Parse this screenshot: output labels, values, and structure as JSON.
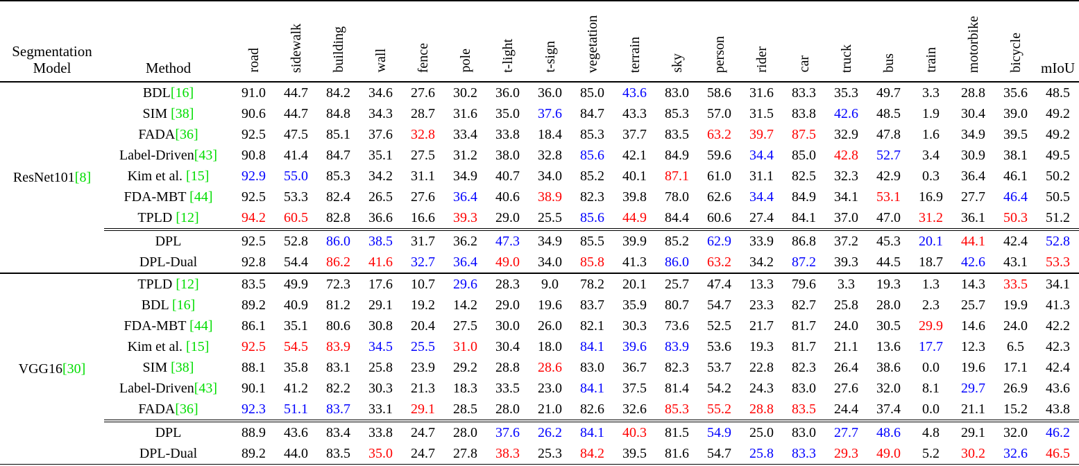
{
  "colors": {
    "text": "#000000",
    "best": "#ff0000",
    "second_best": "#0000ff",
    "citation": "#00dd00"
  },
  "table": {
    "header": {
      "model_col_lines": [
        "Segmentation",
        "Model"
      ],
      "method_col": "Method",
      "class_cols": [
        "road",
        "sidewalk",
        "building",
        "wall",
        "fence",
        "pole",
        "t-light",
        "t-sign",
        "vegetation",
        "terrain",
        "sky",
        "person",
        "rider",
        "car",
        "truck",
        "bus",
        "train",
        "motorbike",
        "bicycle"
      ],
      "miou_col": "mIoU"
    },
    "mark_codes": {
      "k": "text",
      "r": "best",
      "b": "second_best"
    },
    "groups": [
      {
        "model": "ResNet101",
        "model_cite": "[8]",
        "rows": [
          {
            "method": "BDL",
            "cite": "[16]",
            "ours": false,
            "values": [
              "91.0",
              "44.7",
              "84.2",
              "34.6",
              "27.6",
              "30.2",
              "36.0",
              "36.0",
              "85.0",
              "43.6",
              "83.0",
              "58.6",
              "31.6",
              "83.3",
              "35.3",
              "49.7",
              "3.3",
              "28.8",
              "35.6",
              "48.5"
            ],
            "marks": "kkkkkkkkkbkkkkkkkkkk"
          },
          {
            "method": "SIM ",
            "cite": "[38]",
            "ours": false,
            "values": [
              "90.6",
              "44.7",
              "84.8",
              "34.3",
              "28.7",
              "31.6",
              "35.0",
              "37.6",
              "84.7",
              "43.3",
              "85.3",
              "57.0",
              "31.5",
              "83.8",
              "42.6",
              "48.5",
              "1.9",
              "30.4",
              "39.0",
              "49.2"
            ],
            "marks": "kkkkkkkbkkkkkkbkkkkk"
          },
          {
            "method": "FADA",
            "cite": "[36]",
            "ours": false,
            "values": [
              "92.5",
              "47.5",
              "85.1",
              "37.6",
              "32.8",
              "33.4",
              "33.8",
              "18.4",
              "85.3",
              "37.7",
              "83.5",
              "63.2",
              "39.7",
              "87.5",
              "32.9",
              "47.8",
              "1.6",
              "34.9",
              "39.5",
              "49.2"
            ],
            "marks": "kkkkrkkkkkkrrrkkkkkk"
          },
          {
            "method": "Label-Driven",
            "cite": "[43]",
            "ours": false,
            "values": [
              "90.8",
              "41.4",
              "84.7",
              "35.1",
              "27.5",
              "31.2",
              "38.0",
              "32.8",
              "85.6",
              "42.1",
              "84.9",
              "59.6",
              "34.4",
              "85.0",
              "42.8",
              "52.7",
              "3.4",
              "30.9",
              "38.1",
              "49.5"
            ],
            "marks": "kkkkkkkkbkkkbkrbkkkk"
          },
          {
            "method": "Kim et al. ",
            "cite": "[15]",
            "ours": false,
            "values": [
              "92.9",
              "55.0",
              "85.3",
              "34.2",
              "31.1",
              "34.9",
              "40.7",
              "34.0",
              "85.2",
              "40.1",
              "87.1",
              "61.0",
              "31.1",
              "82.5",
              "32.3",
              "42.9",
              "0.3",
              "36.4",
              "46.1",
              "50.2"
            ],
            "marks": "bbkkkkkkkkrkkkkkkkkk"
          },
          {
            "method": "FDA-MBT ",
            "cite": "[44]",
            "ours": false,
            "values": [
              "92.5",
              "53.3",
              "82.4",
              "26.5",
              "27.6",
              "36.4",
              "40.6",
              "38.9",
              "82.3",
              "39.8",
              "78.0",
              "62.6",
              "34.4",
              "84.9",
              "34.1",
              "53.1",
              "16.9",
              "27.7",
              "46.4",
              "50.5"
            ],
            "marks": "kkkkkbkrkkkkbkkrkkbk"
          },
          {
            "method": "TPLD ",
            "cite": "[12]",
            "ours": false,
            "values": [
              "94.2",
              "60.5",
              "82.8",
              "36.6",
              "16.6",
              "39.3",
              "29.0",
              "25.5",
              "85.6",
              "44.9",
              "84.4",
              "60.6",
              "27.4",
              "84.1",
              "37.0",
              "47.0",
              "31.2",
              "36.1",
              "50.3",
              "51.2"
            ],
            "marks": "rrkkkrkkbrkkkkkkrkrk"
          },
          {
            "method": "DPL",
            "cite": "",
            "ours": true,
            "values": [
              "92.5",
              "52.8",
              "86.0",
              "38.5",
              "31.7",
              "36.2",
              "47.3",
              "34.9",
              "85.5",
              "39.9",
              "85.2",
              "62.9",
              "33.9",
              "86.8",
              "37.2",
              "45.3",
              "20.1",
              "44.1",
              "42.4",
              "52.8"
            ],
            "marks": "kkbbkkbkkkkbkkkkbrkb"
          },
          {
            "method": "DPL-Dual",
            "cite": "",
            "ours": true,
            "values": [
              "92.8",
              "54.4",
              "86.2",
              "41.6",
              "32.7",
              "36.4",
              "49.0",
              "34.0",
              "85.8",
              "41.3",
              "86.0",
              "63.2",
              "34.2",
              "87.2",
              "39.3",
              "44.5",
              "18.7",
              "42.6",
              "43.1",
              "53.3"
            ],
            "marks": "kkrrbbrkrkbrkbkkkbkr"
          }
        ]
      },
      {
        "model": "VGG16",
        "model_cite": "[30]",
        "rows": [
          {
            "method": "TPLD ",
            "cite": "[12]",
            "ours": false,
            "values": [
              "83.5",
              "49.9",
              "72.3",
              "17.6",
              "10.7",
              "29.6",
              "28.3",
              "9.0",
              "78.2",
              "20.1",
              "25.7",
              "47.4",
              "13.3",
              "79.6",
              "3.3",
              "19.3",
              "1.3",
              "14.3",
              "33.5",
              "34.1"
            ],
            "marks": "kkkkkbkkkkkkkkkkkkrk"
          },
          {
            "method": "BDL ",
            "cite": "[16]",
            "ours": false,
            "values": [
              "89.2",
              "40.9",
              "81.2",
              "29.1",
              "19.2",
              "14.2",
              "29.0",
              "19.6",
              "83.7",
              "35.9",
              "80.7",
              "54.7",
              "23.3",
              "82.7",
              "25.8",
              "28.0",
              "2.3",
              "25.7",
              "19.9",
              "41.3"
            ],
            "marks": "kkkkkkkkkkkkkkkkkkkk"
          },
          {
            "method": "FDA-MBT ",
            "cite": "[44]",
            "ours": false,
            "values": [
              "86.1",
              "35.1",
              "80.6",
              "30.8",
              "20.4",
              "27.5",
              "30.0",
              "26.0",
              "82.1",
              "30.3",
              "73.6",
              "52.5",
              "21.7",
              "81.7",
              "24.0",
              "30.5",
              "29.9",
              "14.6",
              "24.0",
              "42.2"
            ],
            "marks": "kkkkkkkkkkkkkkkkrkkk"
          },
          {
            "method": "Kim et al. ",
            "cite": "[15]",
            "ours": false,
            "values": [
              "92.5",
              "54.5",
              "83.9",
              "34.5",
              "25.5",
              "31.0",
              "30.4",
              "18.0",
              "84.1",
              "39.6",
              "83.9",
              "53.6",
              "19.3",
              "81.7",
              "21.1",
              "13.6",
              "17.7",
              "12.3",
              "6.5",
              "42.3"
            ],
            "marks": "rrrbbrkkbbbkkkkkbkkk"
          },
          {
            "method": "SIM ",
            "cite": "[38]",
            "ours": false,
            "values": [
              "88.1",
              "35.8",
              "83.1",
              "25.8",
              "23.9",
              "29.2",
              "28.8",
              "28.6",
              "83.0",
              "36.7",
              "82.3",
              "53.7",
              "22.8",
              "82.3",
              "26.4",
              "38.6",
              "0.0",
              "19.6",
              "17.1",
              "42.4"
            ],
            "marks": "kkkkkkkrkkkkkkkkkkkk"
          },
          {
            "method": "Label-Driven",
            "cite": "[43]",
            "ours": false,
            "values": [
              "90.1",
              "41.2",
              "82.2",
              "30.3",
              "21.3",
              "18.3",
              "33.5",
              "23.0",
              "84.1",
              "37.5",
              "81.4",
              "54.2",
              "24.3",
              "83.0",
              "27.6",
              "32.0",
              "8.1",
              "29.7",
              "26.9",
              "43.6"
            ],
            "marks": "kkkkkkkkbkkkkkkkkbkk"
          },
          {
            "method": "FADA",
            "cite": "[36]",
            "ours": false,
            "values": [
              "92.3",
              "51.1",
              "83.7",
              "33.1",
              "29.1",
              "28.5",
              "28.0",
              "21.0",
              "82.6",
              "32.6",
              "85.3",
              "55.2",
              "28.8",
              "83.5",
              "24.4",
              "37.4",
              "0.0",
              "21.1",
              "15.2",
              "43.8"
            ],
            "marks": "bbbkrkkkkkrrrrkkkkkk"
          },
          {
            "method": "DPL",
            "cite": "",
            "ours": true,
            "values": [
              "88.9",
              "43.6",
              "83.4",
              "33.8",
              "24.7",
              "28.0",
              "37.6",
              "26.2",
              "84.1",
              "40.3",
              "81.5",
              "54.9",
              "25.0",
              "83.0",
              "27.7",
              "48.6",
              "4.8",
              "29.1",
              "32.0",
              "46.2"
            ],
            "marks": "kkkkkkbbbrkbkkbbkkkb"
          },
          {
            "method": "DPL-Dual",
            "cite": "",
            "ours": true,
            "values": [
              "89.2",
              "44.0",
              "83.5",
              "35.0",
              "24.7",
              "27.8",
              "38.3",
              "25.3",
              "84.2",
              "39.5",
              "81.6",
              "54.7",
              "25.8",
              "83.3",
              "29.3",
              "49.0",
              "5.2",
              "30.2",
              "32.6",
              "46.5"
            ],
            "marks": "kkkrkkrkrkkkbbrrkrbr"
          }
        ]
      }
    ]
  }
}
